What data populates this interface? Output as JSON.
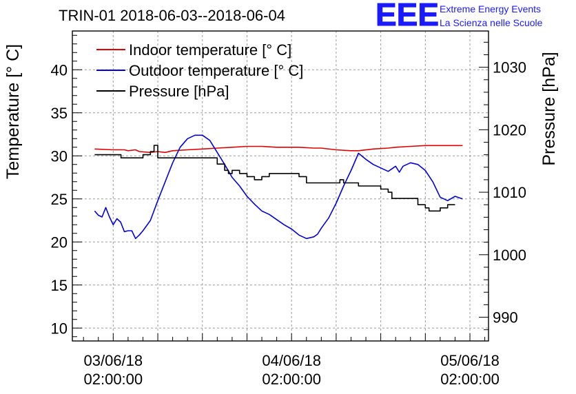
{
  "chart_data": {
    "type": "line",
    "title": "TRIN-01 2018-06-03--2018-06-04",
    "logo": {
      "text": "EEE",
      "line1": "Extreme Energy Events",
      "line2": "La Scienza nelle Scuole"
    },
    "ylabel": "Temperature [° C]",
    "y2label": "Pressure [hPa]",
    "x_tick_labels": [
      {
        "date": "03/06/18",
        "time": "02:00:00"
      },
      {
        "date": "04/06/18",
        "time": "02:00:00"
      },
      {
        "date": "05/06/18",
        "time": "02:00:00"
      }
    ],
    "xlim_hours": [
      -5.5,
      50.5
    ],
    "ylim": [
      8.5,
      44.5
    ],
    "y_ticks": [
      10,
      15,
      20,
      25,
      30,
      35,
      40
    ],
    "y2lim": [
      986.2,
      1035.8
    ],
    "y2_ticks": [
      990,
      1000,
      1010,
      1020,
      1030
    ],
    "grid": true,
    "legend_position": "top-left",
    "colors": {
      "indoor": "#e00000",
      "outdoor": "#0000e0",
      "pressure": "#000000"
    },
    "series": [
      {
        "name": "Indoor temperature [° C]",
        "axis": "left",
        "color": "#e00000",
        "x": [
          -2.5,
          0,
          1.5,
          2,
          3,
          3.5,
          5,
          6,
          7,
          8,
          10,
          12,
          14,
          16,
          18,
          19,
          20,
          22,
          24,
          25,
          27,
          28,
          30,
          32,
          33,
          35,
          37,
          38,
          40,
          42,
          44,
          46,
          47
        ],
        "y": [
          30.8,
          30.7,
          30.7,
          30.6,
          30.7,
          30.5,
          30.4,
          30.5,
          30.4,
          30.6,
          30.7,
          30.8,
          30.9,
          31.0,
          31.1,
          31.1,
          31.1,
          31.0,
          31.0,
          31.0,
          30.9,
          30.9,
          30.7,
          30.6,
          30.6,
          30.8,
          30.9,
          31.0,
          31.1,
          31.2,
          31.2,
          31.2,
          31.2
        ]
      },
      {
        "name": "Outdoor temperature [° C]",
        "axis": "left",
        "color": "#0000e0",
        "x": [
          -2.5,
          -2.0,
          -1.5,
          -1.0,
          -0.5,
          0,
          0.5,
          1,
          1.5,
          2,
          2.5,
          3,
          3.5,
          4,
          5,
          6,
          7,
          8,
          9,
          10,
          11,
          12,
          13,
          14,
          15,
          16,
          17,
          18,
          19,
          20,
          21,
          22,
          23,
          24,
          25,
          26,
          27,
          27.5,
          28,
          29,
          30,
          31,
          32,
          33,
          34,
          35,
          36,
          37,
          38,
          38.5,
          39,
          40,
          41,
          42,
          43,
          44,
          45,
          46,
          47
        ],
        "y": [
          23.6,
          23.1,
          22.9,
          24.0,
          22.9,
          22.0,
          22.7,
          22.3,
          21.2,
          21.3,
          21.3,
          20.4,
          20.8,
          21.3,
          22.5,
          24.8,
          27.0,
          29.2,
          31.0,
          32.0,
          32.4,
          32.4,
          31.8,
          30.4,
          29.0,
          27.5,
          26.5,
          25.3,
          24.4,
          23.6,
          23.2,
          22.6,
          22.0,
          21.5,
          20.8,
          20.4,
          20.6,
          20.9,
          21.6,
          22.8,
          24.5,
          26.5,
          28.3,
          30.3,
          29.6,
          29.0,
          28.6,
          28.2,
          28.8,
          28.1,
          28.8,
          29.2,
          29.0,
          28.3,
          27.0,
          25.2,
          24.8,
          25.3,
          25.0
        ]
      },
      {
        "name": "Pressure [hPa]",
        "axis": "right",
        "color": "#000000",
        "x": [
          -2.5,
          1,
          1.05,
          3,
          4,
          5,
          5.5,
          6,
          7,
          8,
          13,
          14,
          15,
          15.5,
          16,
          17,
          18,
          19,
          20,
          21,
          22,
          25,
          26,
          27,
          30,
          30.5,
          31,
          32,
          33,
          36,
          37,
          37.5,
          40,
          41,
          42,
          42.5,
          43,
          44,
          45,
          46
        ],
        "y": [
          1016,
          1016,
          1015.5,
          1015.5,
          1016,
          1016.5,
          1017.5,
          1015.5,
          1015.5,
          1015.5,
          1015.5,
          1014.5,
          1013.5,
          1013,
          1013.5,
          1013,
          1012.5,
          1012,
          1012.5,
          1013,
          1013,
          1012.5,
          1011.5,
          1011.5,
          1011.5,
          1012,
          1011.5,
          1011.5,
          1011,
          1010.5,
          1010,
          1009,
          1009,
          1008,
          1007.5,
          1007,
          1007,
          1007.5,
          1008,
          1008
        ]
      }
    ]
  }
}
